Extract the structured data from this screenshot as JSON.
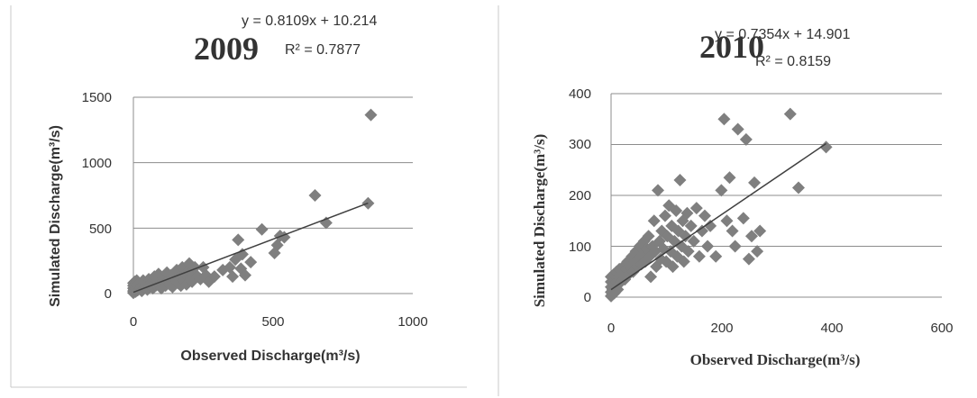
{
  "chart_data": [
    {
      "type": "scatter",
      "title": "2009",
      "equation": "y = 0.8109x + 10.214",
      "r_squared": "R² = 0.7877",
      "xlabel": "Observed Discharge(m³/s)",
      "ylabel": "Simulated Discharge(m³/s)",
      "xlim": [
        0,
        1000
      ],
      "ylim": [
        0,
        1500
      ],
      "xticks": [
        "0",
        "500",
        "1000"
      ],
      "yticks": [
        "0",
        "500",
        "1000",
        "1500"
      ],
      "grid": true,
      "marker_color": "#7f7f7f",
      "trendline": {
        "slope": 0.8109,
        "intercept": 10.214,
        "x_range": [
          0,
          840
        ]
      },
      "points": [
        [
          0,
          5
        ],
        [
          0,
          20
        ],
        [
          0,
          40
        ],
        [
          0,
          60
        ],
        [
          0,
          80
        ],
        [
          2,
          10
        ],
        [
          3,
          30
        ],
        [
          5,
          55
        ],
        [
          5,
          90
        ],
        [
          8,
          15
        ],
        [
          10,
          35
        ],
        [
          10,
          70
        ],
        [
          12,
          100
        ],
        [
          15,
          25
        ],
        [
          18,
          50
        ],
        [
          20,
          80
        ],
        [
          25,
          40
        ],
        [
          30,
          60
        ],
        [
          30,
          20
        ],
        [
          35,
          100
        ],
        [
          40,
          45
        ],
        [
          45,
          75
        ],
        [
          50,
          30
        ],
        [
          55,
          110
        ],
        [
          60,
          55
        ],
        [
          65,
          85
        ],
        [
          70,
          40
        ],
        [
          75,
          130
        ],
        [
          80,
          60
        ],
        [
          85,
          95
        ],
        [
          90,
          150
        ],
        [
          95,
          70
        ],
        [
          100,
          40
        ],
        [
          105,
          120
        ],
        [
          110,
          90
        ],
        [
          115,
          60
        ],
        [
          120,
          160
        ],
        [
          125,
          100
        ],
        [
          130,
          70
        ],
        [
          135,
          140
        ],
        [
          140,
          50
        ],
        [
          150,
          110
        ],
        [
          155,
          180
        ],
        [
          160,
          80
        ],
        [
          165,
          130
        ],
        [
          170,
          60
        ],
        [
          175,
          200
        ],
        [
          180,
          100
        ],
        [
          185,
          150
        ],
        [
          190,
          70
        ],
        [
          195,
          170
        ],
        [
          200,
          230
        ],
        [
          205,
          120
        ],
        [
          210,
          90
        ],
        [
          215,
          150
        ],
        [
          220,
          200
        ],
        [
          230,
          130
        ],
        [
          240,
          110
        ],
        [
          250,
          200
        ],
        [
          260,
          140
        ],
        [
          270,
          90
        ],
        [
          290,
          130
        ],
        [
          320,
          180
        ],
        [
          345,
          200
        ],
        [
          355,
          130
        ],
        [
          365,
          260
        ],
        [
          375,
          410
        ],
        [
          385,
          190
        ],
        [
          390,
          300
        ],
        [
          400,
          140
        ],
        [
          420,
          240
        ],
        [
          460,
          490
        ],
        [
          505,
          310
        ],
        [
          515,
          370
        ],
        [
          525,
          440
        ],
        [
          540,
          430
        ],
        [
          650,
          750
        ],
        [
          690,
          540
        ],
        [
          840,
          690
        ],
        [
          850,
          1365
        ]
      ]
    },
    {
      "type": "scatter",
      "title": "2010",
      "equation": "y = 0.7354x + 14.901",
      "r_squared": "R² = 0.8159",
      "xlabel": "Observed Discharge(m³/s)",
      "ylabel": "Simulated Discharge(m³/s)",
      "xlim": [
        0,
        600
      ],
      "ylim": [
        0,
        400
      ],
      "xticks": [
        "0",
        "200",
        "400",
        "600"
      ],
      "yticks": [
        "0",
        "100",
        "200",
        "300",
        "400"
      ],
      "grid": true,
      "marker_color": "#7f7f7f",
      "trendline": {
        "slope": 0.7354,
        "intercept": 14.901,
        "x_range": [
          0,
          390
        ]
      },
      "points": [
        [
          0,
          2
        ],
        [
          0,
          10
        ],
        [
          0,
          20
        ],
        [
          0,
          30
        ],
        [
          0,
          40
        ],
        [
          2,
          5
        ],
        [
          3,
          15
        ],
        [
          4,
          25
        ],
        [
          5,
          35
        ],
        [
          5,
          45
        ],
        [
          6,
          8
        ],
        [
          8,
          20
        ],
        [
          10,
          30
        ],
        [
          10,
          50
        ],
        [
          12,
          15
        ],
        [
          14,
          40
        ],
        [
          15,
          55
        ],
        [
          18,
          30
        ],
        [
          20,
          45
        ],
        [
          22,
          60
        ],
        [
          25,
          35
        ],
        [
          28,
          55
        ],
        [
          30,
          70
        ],
        [
          32,
          45
        ],
        [
          35,
          60
        ],
        [
          38,
          80
        ],
        [
          40,
          50
        ],
        [
          42,
          70
        ],
        [
          45,
          90
        ],
        [
          48,
          60
        ],
        [
          50,
          75
        ],
        [
          52,
          100
        ],
        [
          55,
          65
        ],
        [
          58,
          85
        ],
        [
          60,
          110
        ],
        [
          62,
          70
        ],
        [
          65,
          95
        ],
        [
          68,
          120
        ],
        [
          70,
          80
        ],
        [
          72,
          40
        ],
        [
          75,
          100
        ],
        [
          78,
          150
        ],
        [
          80,
          90
        ],
        [
          82,
          60
        ],
        [
          85,
          210
        ],
        [
          88,
          110
        ],
        [
          90,
          75
        ],
        [
          92,
          130
        ],
        [
          95,
          95
        ],
        [
          98,
          160
        ],
        [
          100,
          70
        ],
        [
          102,
          120
        ],
        [
          105,
          180
        ],
        [
          108,
          90
        ],
        [
          110,
          140
        ],
        [
          112,
          60
        ],
        [
          115,
          110
        ],
        [
          118,
          170
        ],
        [
          120,
          80
        ],
        [
          122,
          130
        ],
        [
          125,
          230
        ],
        [
          128,
          100
        ],
        [
          130,
          150
        ],
        [
          132,
          70
        ],
        [
          135,
          120
        ],
        [
          138,
          165
        ],
        [
          140,
          90
        ],
        [
          145,
          140
        ],
        [
          150,
          110
        ],
        [
          155,
          175
        ],
        [
          160,
          80
        ],
        [
          165,
          130
        ],
        [
          170,
          160
        ],
        [
          175,
          100
        ],
        [
          180,
          140
        ],
        [
          190,
          80
        ],
        [
          200,
          210
        ],
        [
          205,
          350
        ],
        [
          210,
          150
        ],
        [
          215,
          235
        ],
        [
          220,
          130
        ],
        [
          225,
          100
        ],
        [
          230,
          330
        ],
        [
          240,
          155
        ],
        [
          245,
          310
        ],
        [
          250,
          75
        ],
        [
          255,
          120
        ],
        [
          260,
          225
        ],
        [
          265,
          90
        ],
        [
          270,
          130
        ],
        [
          325,
          360
        ],
        [
          340,
          215
        ],
        [
          390,
          295
        ]
      ]
    }
  ]
}
